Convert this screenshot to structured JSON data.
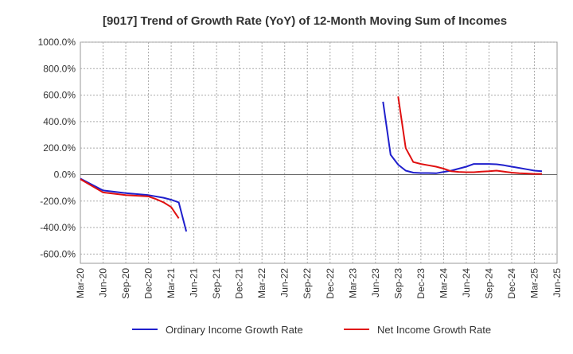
{
  "chart_data": {
    "type": "line",
    "title": "[9017]  Trend of Growth Rate (YoY) of 12-Month Moving Sum of Incomes",
    "xlabel": "",
    "ylabel": "",
    "ylim": [
      -670,
      1000
    ],
    "y_ticks": [
      1000,
      800,
      600,
      400,
      200,
      0,
      -200,
      -400,
      -600
    ],
    "y_tick_labels": [
      "1000.0%",
      "800.0%",
      "600.0%",
      "400.0%",
      "200.0%",
      "0.0%",
      "-200.0%",
      "-400.0%",
      "-600.0%"
    ],
    "x_tick_labels": [
      "Mar-20",
      "Jun-20",
      "Sep-20",
      "Dec-20",
      "Mar-21",
      "Jun-21",
      "Sep-21",
      "Dec-21",
      "Mar-22",
      "Jun-22",
      "Sep-22",
      "Dec-22",
      "Mar-23",
      "Jun-23",
      "Sep-23",
      "Dec-23",
      "Mar-24",
      "Jun-24",
      "Sep-24",
      "Dec-24",
      "Mar-25",
      "Jun-25"
    ],
    "grid": true,
    "legend_position": "bottom",
    "series": [
      {
        "name": "Ordinary Income Growth Rate",
        "color": "#1f1fcc",
        "segments": [
          [
            [
              0,
              -30
            ],
            [
              3,
              -120
            ],
            [
              6,
              -140
            ],
            [
              9,
              -155
            ],
            [
              11,
              -175
            ],
            [
              12,
              -190
            ],
            [
              13,
              -210
            ],
            [
              14,
              -430
            ]
          ],
          [
            [
              40,
              550
            ],
            [
              41,
              150
            ],
            [
              42,
              75
            ],
            [
              43,
              30
            ],
            [
              44,
              15
            ],
            [
              45,
              12
            ],
            [
              46,
              12
            ],
            [
              47,
              10
            ],
            [
              48,
              20
            ],
            [
              49,
              30
            ],
            [
              50,
              45
            ],
            [
              51,
              60
            ],
            [
              52,
              80
            ],
            [
              53,
              80
            ],
            [
              54,
              80
            ],
            [
              55,
              78
            ],
            [
              56,
              70
            ],
            [
              57,
              60
            ],
            [
              58,
              50
            ],
            [
              59,
              40
            ],
            [
              60,
              30
            ],
            [
              61,
              25
            ]
          ]
        ]
      },
      {
        "name": "Net Income Growth Rate",
        "color": "#e01010",
        "segments": [
          [
            [
              0,
              -35
            ],
            [
              3,
              -135
            ],
            [
              6,
              -155
            ],
            [
              9,
              -165
            ],
            [
              10,
              -185
            ],
            [
              11,
              -210
            ],
            [
              12,
              -245
            ],
            [
              13,
              -330
            ]
          ],
          [
            [
              42,
              590
            ],
            [
              43,
              200
            ],
            [
              44,
              95
            ],
            [
              45,
              80
            ],
            [
              46,
              70
            ],
            [
              47,
              60
            ],
            [
              48,
              45
            ],
            [
              49,
              25
            ],
            [
              50,
              20
            ],
            [
              51,
              18
            ],
            [
              52,
              18
            ],
            [
              53,
              22
            ],
            [
              54,
              25
            ],
            [
              55,
              30
            ],
            [
              56,
              22
            ],
            [
              57,
              15
            ],
            [
              58,
              10
            ],
            [
              59,
              8
            ],
            [
              60,
              5
            ],
            [
              61,
              5
            ]
          ]
        ]
      }
    ]
  }
}
